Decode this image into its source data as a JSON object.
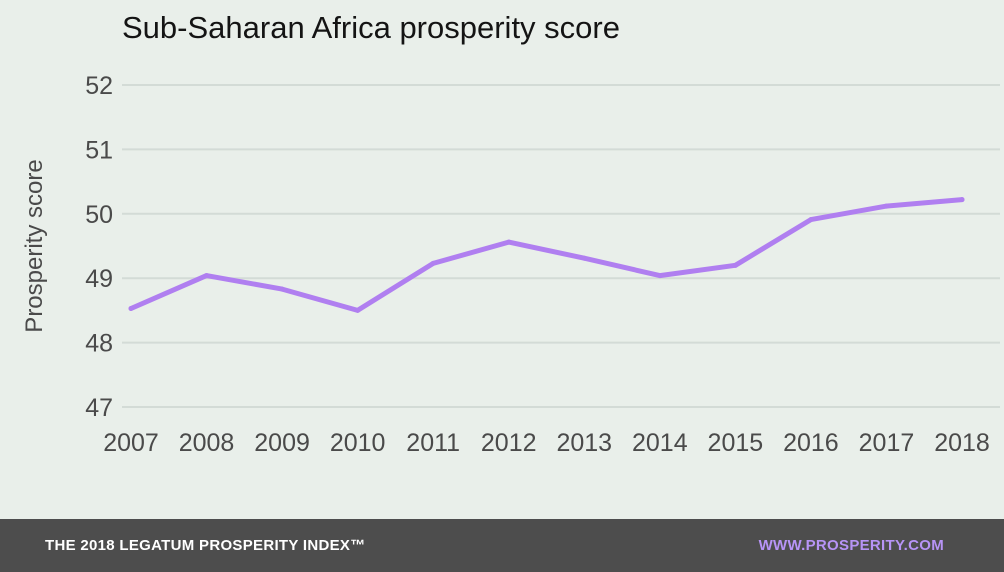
{
  "colors": {
    "background": "#e9efea",
    "line": "#b07ff0",
    "grid": "#d3dbd6",
    "text": "#4a4a4a",
    "footer_bg": "#4d4d4d",
    "footer_link": "#b794f6"
  },
  "footer": {
    "left_text": "THE 2018 LEGATUM PROSPERITY INDEX™",
    "right_text": "WWW.PROSPERITY.COM"
  },
  "chart_data": {
    "type": "line",
    "title": "Sub-Saharan Africa prosperity score",
    "xlabel": "",
    "ylabel": "Prosperity score",
    "x": [
      "2007",
      "2008",
      "2009",
      "2010",
      "2011",
      "2012",
      "2013",
      "2014",
      "2015",
      "2016",
      "2017",
      "2018"
    ],
    "series": [
      {
        "values": [
          48.53,
          49.04,
          48.83,
          48.5,
          49.23,
          49.56,
          49.31,
          49.04,
          49.2,
          49.91,
          50.12,
          50.22
        ]
      }
    ],
    "yticks": [
      47,
      48,
      49,
      50,
      51,
      52
    ],
    "ylim": [
      47,
      52
    ],
    "grid": true,
    "legend": "none"
  }
}
